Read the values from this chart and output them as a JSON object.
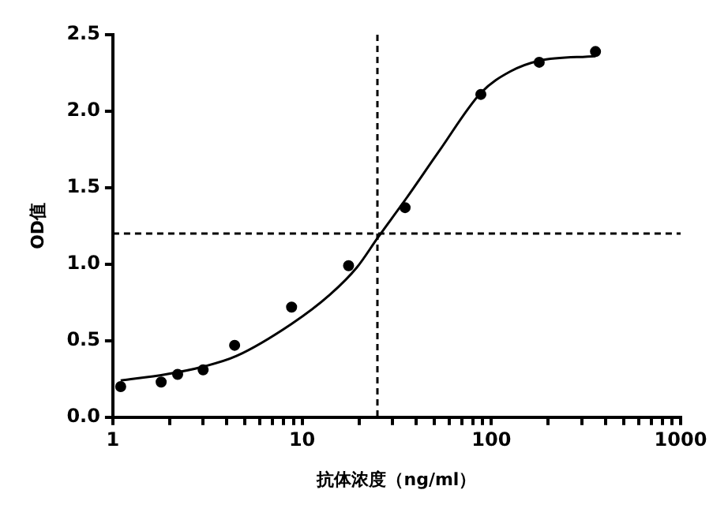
{
  "chart_data": {
    "type": "scatter",
    "xlabel": "抗体浓度（ng/ml）",
    "ylabel": "OD值",
    "log": "x",
    "grid": false,
    "legend": false,
    "xlim": [
      1,
      1000
    ],
    "xticks": [
      1,
      {
        "value": 2,
        "label": null
      },
      {
        "value": 3,
        "label": null
      },
      {
        "value": 4,
        "label": null
      },
      {
        "value": 5,
        "label": null
      },
      {
        "value": 6,
        "label": null
      },
      {
        "value": 7,
        "label": null
      },
      {
        "value": 8,
        "label": null
      },
      {
        "value": 9,
        "label": null
      },
      10,
      {
        "value": 20,
        "label": null
      },
      {
        "value": 30,
        "label": null
      },
      {
        "value": 40,
        "label": null
      },
      {
        "value": 50,
        "label": null
      },
      {
        "value": 60,
        "label": null
      },
      {
        "value": 70,
        "label": null
      },
      {
        "value": 80,
        "label": null
      },
      {
        "value": 90,
        "label": null
      },
      100,
      {
        "value": 200,
        "label": null
      },
      {
        "value": 300,
        "label": null
      },
      {
        "value": 400,
        "label": null
      },
      {
        "value": 500,
        "label": null
      },
      {
        "value": 600,
        "label": null
      },
      {
        "value": 700,
        "label": null
      },
      {
        "value": 800,
        "label": null
      },
      {
        "value": 900,
        "label": null
      },
      1000
    ],
    "ylim": [
      0,
      2.5
    ],
    "yticks": [
      {
        "value": 0,
        "label": "0.0"
      },
      {
        "value": 0.5,
        "label": "0.5"
      },
      {
        "value": 1,
        "label": "1.0"
      },
      {
        "value": 1.5,
        "label": "1.5"
      },
      {
        "value": 2,
        "label": "2.0"
      },
      {
        "value": 2.5,
        "label": "2.5"
      }
    ],
    "series": [
      {
        "type": "scatter",
        "color": "#000000",
        "marker": "circle",
        "x": [
          1.1,
          1.8,
          2.2,
          3,
          4.4,
          8.8,
          17.6,
          35,
          88,
          179,
          355
        ],
        "values": [
          0.2,
          0.23,
          0.28,
          0.31,
          0.47,
          0.72,
          0.99,
          1.37,
          2.11,
          2.32,
          2.39
        ]
      },
      {
        "type": "line",
        "color": "#000000",
        "marker": "none",
        "line_style": "solid",
        "x": [
          1.1,
          1.9,
          3,
          4.5,
          8.8,
          14,
          19.5,
          25,
          35.5,
          53,
          88,
          126,
          179,
          355
        ],
        "values": [
          0.24,
          0.28,
          0.33,
          0.4,
          0.61,
          0.8,
          0.98,
          1.17,
          1.43,
          1.74,
          2.12,
          2.26,
          2.33,
          2.36
        ]
      }
    ],
    "ref_lines": [
      {
        "axis": "x",
        "value": 25,
        "color": "#000000",
        "line_style": "dashed"
      },
      {
        "axis": "y",
        "value": 1.2,
        "color": "#000000",
        "line_style": "dashed"
      }
    ]
  }
}
